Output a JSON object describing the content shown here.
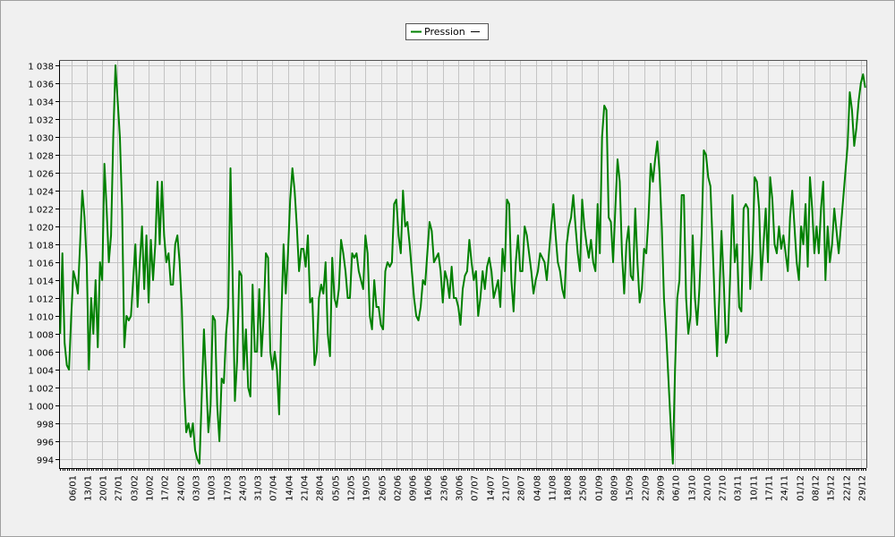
{
  "chart_data": {
    "type": "line",
    "series": [
      {
        "name": "Pression",
        "color": "#008000",
        "values": [
          1008,
          1017,
          1007,
          1004.5,
          1004,
          1010,
          1015,
          1014,
          1012.5,
          1018,
          1024,
          1021,
          1016,
          1004,
          1012,
          1008,
          1014,
          1006.5,
          1016,
          1014,
          1027,
          1022,
          1016,
          1019,
          1030,
          1038,
          1034,
          1030,
          1022,
          1006.5,
          1010,
          1009.5,
          1010,
          1014,
          1018,
          1011,
          1016,
          1020,
          1013,
          1019,
          1011.5,
          1018.5,
          1014,
          1018,
          1025,
          1018,
          1025,
          1019,
          1016,
          1017,
          1013.5,
          1013.5,
          1018,
          1019,
          1016,
          1011,
          1002,
          997,
          998,
          996.5,
          998,
          995,
          994,
          993.5,
          1001,
          1008.5,
          1003,
          997,
          1000,
          1010,
          1009.5,
          1000,
          996,
          1003,
          1002.5,
          1008,
          1011,
          1026.5,
          1014,
          1000.5,
          1005,
          1015,
          1014.5,
          1004,
          1008.5,
          1002,
          1001,
          1013.5,
          1006,
          1006,
          1013,
          1005.5,
          1010,
          1017,
          1016.5,
          1006,
          1004,
          1006,
          1004,
          999,
          1010,
          1018,
          1012.5,
          1017,
          1023,
          1026.5,
          1024,
          1020,
          1015,
          1017.5,
          1017.5,
          1015.5,
          1019,
          1011.5,
          1012,
          1004.5,
          1006,
          1012,
          1013.5,
          1012.5,
          1016,
          1008,
          1005.5,
          1016.5,
          1012,
          1011,
          1013,
          1018.5,
          1017,
          1015,
          1012,
          1012,
          1017,
          1016.5,
          1017,
          1015,
          1014,
          1013,
          1019,
          1017,
          1010,
          1008.5,
          1014,
          1011,
          1011,
          1009,
          1008.5,
          1015,
          1016,
          1015.5,
          1016,
          1022.5,
          1023,
          1019,
          1017,
          1024,
          1020,
          1020.5,
          1018,
          1015,
          1012,
          1010,
          1009.5,
          1011,
          1014,
          1013.5,
          1017,
          1020.5,
          1019.5,
          1016,
          1016.5,
          1017,
          1015,
          1011.5,
          1015,
          1014,
          1012,
          1015.5,
          1012,
          1012,
          1011,
          1009,
          1013,
          1014.5,
          1015,
          1018.5,
          1016,
          1014,
          1015,
          1010,
          1012,
          1015,
          1013,
          1015.5,
          1016.5,
          1015,
          1012,
          1013,
          1014,
          1011,
          1017.5,
          1015,
          1023,
          1022.5,
          1014,
          1010.5,
          1016,
          1019,
          1015,
          1015,
          1020,
          1019,
          1017,
          1015,
          1012.5,
          1014,
          1015,
          1017,
          1016.5,
          1016,
          1014,
          1017,
          1020,
          1022.5,
          1019,
          1016,
          1015,
          1013,
          1012,
          1018,
          1020,
          1021,
          1023.5,
          1020,
          1017,
          1015,
          1023,
          1020,
          1018,
          1016.5,
          1018.5,
          1016,
          1015,
          1022.5,
          1017,
          1030,
          1033.5,
          1033,
          1021,
          1020.5,
          1016,
          1022,
          1027.5,
          1025,
          1017,
          1012.5,
          1018,
          1020,
          1014.5,
          1014,
          1022,
          1016,
          1011.5,
          1013,
          1017.5,
          1017,
          1021,
          1027,
          1025,
          1027.5,
          1029.5,
          1026,
          1020,
          1012,
          1008,
          1003,
          998,
          993.5,
          1004,
          1012,
          1014,
          1023.5,
          1023.5,
          1012,
          1008,
          1010,
          1019,
          1012,
          1009,
          1013,
          1019,
          1028.5,
          1028,
          1025.5,
          1024.5,
          1018,
          1011,
          1005.5,
          1012,
          1019.5,
          1014,
          1007,
          1008,
          1015,
          1023.5,
          1016,
          1018,
          1011,
          1010.5,
          1022,
          1022.5,
          1022,
          1013,
          1017,
          1025.5,
          1025,
          1022,
          1014,
          1018,
          1022,
          1016,
          1025.5,
          1023,
          1018,
          1017,
          1020,
          1017.5,
          1019,
          1017,
          1015,
          1021,
          1024,
          1020,
          1016,
          1014,
          1020,
          1018,
          1022.5,
          1015.5,
          1025.5,
          1022,
          1017,
          1020,
          1017,
          1022,
          1025,
          1014,
          1020,
          1016,
          1018,
          1022,
          1019.5,
          1017,
          1020,
          1023,
          1026,
          1029,
          1035,
          1033,
          1029,
          1031,
          1034,
          1036,
          1037,
          1035.5
        ]
      }
    ],
    "categories": [
      null,
      null,
      null,
      null,
      null,
      "06/01",
      null,
      null,
      null,
      null,
      null,
      null,
      "13/01",
      null,
      null,
      null,
      null,
      null,
      null,
      "20/01",
      null,
      null,
      null,
      null,
      null,
      null,
      "27/01",
      null,
      null,
      null,
      null,
      null,
      null,
      "03/02",
      null,
      null,
      null,
      null,
      null,
      null,
      "10/02",
      null,
      null,
      null,
      null,
      null,
      null,
      "17/02",
      null,
      null,
      null,
      null,
      null,
      null,
      "24/02",
      null,
      null,
      null,
      null,
      null,
      null,
      "03/03",
      null,
      null,
      null,
      null,
      null,
      null,
      "10/03",
      null,
      null,
      null,
      null,
      null,
      null,
      "17/03",
      null,
      null,
      null,
      null,
      null,
      null,
      "24/03",
      null,
      null,
      null,
      null,
      null,
      null,
      "31/03",
      null,
      null,
      null,
      null,
      null,
      null,
      "07/04",
      null,
      null,
      null,
      null,
      null,
      null,
      "14/04",
      null,
      null,
      null,
      null,
      null,
      null,
      "21/04",
      null,
      null,
      null,
      null,
      null,
      null,
      "28/04",
      null,
      null,
      null,
      null,
      null,
      null,
      "05/05",
      null,
      null,
      null,
      null,
      null,
      null,
      "12/05",
      null,
      null,
      null,
      null,
      null,
      null,
      "19/05",
      null,
      null,
      null,
      null,
      null,
      null,
      "26/05",
      null,
      null,
      null,
      null,
      null,
      null,
      "02/06",
      null,
      null,
      null,
      null,
      null,
      null,
      "09/06",
      null,
      null,
      null,
      null,
      null,
      null,
      "16/06",
      null,
      null,
      null,
      null,
      null,
      null,
      "23/06",
      null,
      null,
      null,
      null,
      null,
      null,
      "30/06",
      null,
      null,
      null,
      null,
      null,
      null,
      "07/07",
      null,
      null,
      null,
      null,
      null,
      null,
      "14/07",
      null,
      null,
      null,
      null,
      null,
      null,
      "21/07",
      null,
      null,
      null,
      null,
      null,
      null,
      "28/07",
      null,
      null,
      null,
      null,
      null,
      null,
      "04/08",
      null,
      null,
      null,
      null,
      null,
      null,
      "11/08",
      null,
      null,
      null,
      null,
      null,
      null,
      "18/08",
      null,
      null,
      null,
      null,
      null,
      null,
      "25/08",
      null,
      null,
      null,
      null,
      null,
      null,
      "01/09",
      null,
      null,
      null,
      null,
      null,
      null,
      "08/09",
      null,
      null,
      null,
      null,
      null,
      null,
      "15/09",
      null,
      null,
      null,
      null,
      null,
      null,
      "22/09",
      null,
      null,
      null,
      null,
      null,
      null,
      "29/09",
      null,
      null,
      null,
      null,
      null,
      null,
      "06/10",
      null,
      null,
      null,
      null,
      null,
      null,
      "13/10",
      null,
      null,
      null,
      null,
      null,
      null,
      "20/10",
      null,
      null,
      null,
      null,
      null,
      null,
      "27/10",
      null,
      null,
      null,
      null,
      null,
      null,
      "03/11",
      null,
      null,
      null,
      null,
      null,
      null,
      "10/11",
      null,
      null,
      null,
      null,
      null,
      null,
      "17/11",
      null,
      null,
      null,
      null,
      null,
      null,
      "24/11",
      null,
      null,
      null,
      null,
      null,
      null,
      "01/12",
      null,
      null,
      null,
      null,
      null,
      null,
      "08/12",
      null,
      null,
      null,
      null,
      null,
      null,
      "15/12",
      null,
      null,
      null,
      null,
      null,
      null,
      "22/12",
      null,
      null,
      null,
      null,
      null,
      null,
      "29/12",
      null,
      null
    ],
    "ylim": [
      993,
      1038.6
    ],
    "yticks": [
      994,
      996,
      998,
      {
        "value": 1000,
        "label": "1 000"
      },
      {
        "value": 1002,
        "label": "1 002"
      },
      {
        "value": 1004,
        "label": "1 004"
      },
      {
        "value": 1006,
        "label": "1 006"
      },
      {
        "value": 1008,
        "label": "1 008"
      },
      {
        "value": 1010,
        "label": "1 010"
      },
      {
        "value": 1012,
        "label": "1 012"
      },
      {
        "value": 1014,
        "label": "1 014"
      },
      {
        "value": 1016,
        "label": "1 016"
      },
      {
        "value": 1018,
        "label": "1 018"
      },
      {
        "value": 1020,
        "label": "1 020"
      },
      {
        "value": 1022,
        "label": "1 022"
      },
      {
        "value": 1024,
        "label": "1 024"
      },
      {
        "value": 1026,
        "label": "1 026"
      },
      {
        "value": 1028,
        "label": "1 028"
      },
      {
        "value": 1030,
        "label": "1 030"
      },
      {
        "value": 1032,
        "label": "1 032"
      },
      {
        "value": 1034,
        "label": "1 034"
      },
      {
        "value": 1036,
        "label": "1 036"
      },
      {
        "value": 1038,
        "label": "1 038"
      }
    ],
    "grid": true,
    "legend": "top"
  }
}
